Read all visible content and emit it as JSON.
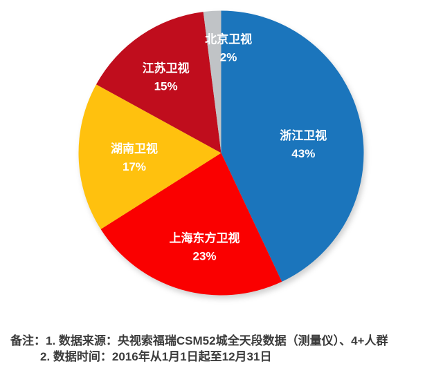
{
  "chart_data": {
    "type": "pie",
    "title": "",
    "direction": "clockwise",
    "start_angle_deg": 0,
    "grid": false,
    "legend": "none",
    "label_color": "#FFFFFF",
    "background": "#FFFFFF",
    "slices": [
      {
        "label": "浙江卫视",
        "value": 43,
        "display": "43%",
        "color": "#1B75BC",
        "label_angle_deg": 84,
        "label_r_frac": 0.58
      },
      {
        "label": "上海东方卫视",
        "value": 23,
        "display": "23%",
        "color": "#FA0000",
        "label_angle_deg": 190,
        "label_r_frac": 0.67
      },
      {
        "label": "湖南卫视",
        "value": 17,
        "display": "17%",
        "color": "#FFC10E",
        "label_angle_deg": 267,
        "label_r_frac": 0.61
      },
      {
        "label": "江苏卫视",
        "value": 15,
        "display": "15%",
        "color": "#C00D1D",
        "label_angle_deg": 324,
        "label_r_frac": 0.66
      },
      {
        "label": "北京卫视",
        "value": 2,
        "display": "2%",
        "color": "#C0C3C6",
        "label_angle_deg": 4,
        "label_r_frac": 0.74
      }
    ]
  },
  "footnote": {
    "line1": "备注：1. 数据来源：央视索福瑞CSM52城全天段数据（测量仪）、4+人群",
    "line2": "2. 数据时间：2016年从1月1日起至12月31日"
  }
}
